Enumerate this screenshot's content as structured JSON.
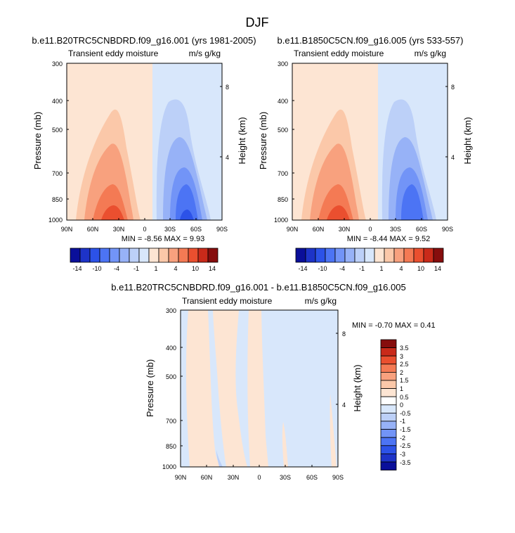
{
  "figure_title": "DJF",
  "chart_data": [
    {
      "type": "heatmap",
      "title": "b.e11.B20TRC5CNBDRD.f09_g16.001 (yrs 1981-2005)",
      "subtitle_left": "Transient eddy moisture",
      "subtitle_right": "m/s g/kg",
      "ylabel": "Pressure (mb)",
      "ylabel_right": "Height (km)",
      "xticks": [
        "90N",
        "60N",
        "30N",
        "0",
        "30S",
        "60S",
        "90S"
      ],
      "yticks": [
        "300",
        "400",
        "500",
        "700",
        "850",
        "1000"
      ],
      "yticks_right": [
        "8",
        "4"
      ],
      "min_max_label": "MIN = -8.56  MAX =  9.93",
      "min": -8.56,
      "max": 9.93,
      "levels": [
        "-14",
        "-10",
        "-4",
        "-1",
        "1",
        "4",
        "10",
        "14"
      ]
    },
    {
      "type": "heatmap",
      "title": "b.e11.B1850C5CN.f09_g16.005 (yrs 533-557)",
      "subtitle_left": "Transient eddy moisture",
      "subtitle_right": "m/s g/kg",
      "ylabel": "Pressure (mb)",
      "ylabel_right": "Height (km)",
      "xticks": [
        "90N",
        "60N",
        "30N",
        "0",
        "30S",
        "60S",
        "90S"
      ],
      "yticks": [
        "300",
        "400",
        "500",
        "700",
        "850",
        "1000"
      ],
      "yticks_right": [
        "8",
        "4"
      ],
      "min_max_label": "MIN = -8.44  MAX =  9.52",
      "min": -8.44,
      "max": 9.52,
      "levels": [
        "-14",
        "-10",
        "-4",
        "-1",
        "1",
        "4",
        "10",
        "14"
      ]
    },
    {
      "type": "heatmap",
      "title": "b.e11.B20TRC5CNBDRD.f09_g16.001 - b.e11.B1850C5CN.f09_g16.005",
      "subtitle_left": "Transient eddy moisture",
      "subtitle_right": "m/s g/kg",
      "ylabel": "Pressure (mb)",
      "ylabel_right": "Height (km)",
      "xticks": [
        "90N",
        "60N",
        "30N",
        "0",
        "30S",
        "60S",
        "90S"
      ],
      "yticks": [
        "300",
        "400",
        "500",
        "700",
        "850",
        "1000"
      ],
      "yticks_right": [
        "8",
        "4"
      ],
      "min_max_label": "MIN = -0.70  MAX =  0.41",
      "min": -0.7,
      "max": 0.41,
      "levels": [
        "3.5",
        "3",
        "2.5",
        "2",
        "1.5",
        "1",
        "0.5",
        "0",
        "-0.5",
        "-1",
        "-1.5",
        "-2",
        "-2.5",
        "-3",
        "-3.5"
      ]
    }
  ],
  "colors": {
    "top_palette": [
      "#0a0f9a",
      "#1d33c8",
      "#2c52e8",
      "#4c74f4",
      "#7294f7",
      "#97b2f7",
      "#bcd0f8",
      "#d8e7fb",
      "#fde5d3",
      "#fbc8a9",
      "#f8a17e",
      "#f47a54",
      "#ea4f2f",
      "#c92a1a",
      "#860d0d"
    ],
    "diff_palette": [
      "#860d0d",
      "#c92a1a",
      "#ea4f2f",
      "#f47a54",
      "#f8a17e",
      "#fbc8a9",
      "#fde5d3",
      "#ffffff",
      "#d8e7fb",
      "#bcd0f8",
      "#97b2f7",
      "#7294f7",
      "#4c74f4",
      "#2c52e8",
      "#1d33c8",
      "#0a0f9a"
    ]
  }
}
